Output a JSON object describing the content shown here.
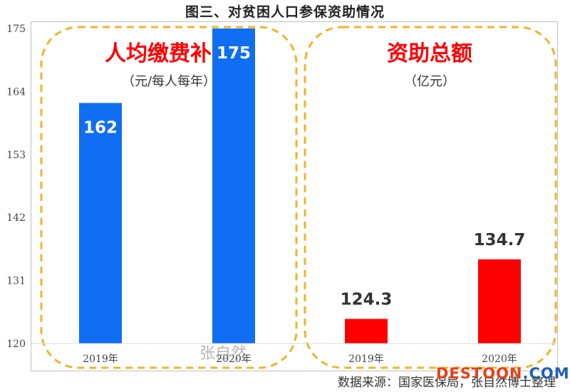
{
  "title": "图三、对贫困人口参保资助情况",
  "source": "数据来源：国家医保局，张自然博士整理",
  "watermark": "张自然",
  "site_logo": {
    "part1": "DESTOON",
    "part2": ".COM"
  },
  "colors": {
    "blue": "#0f6ef2",
    "red": "#ff0000",
    "dash": "#f0b429",
    "label_red": "#ff0000"
  },
  "chart_data": {
    "type": "bar",
    "ylim": [
      120,
      175
    ],
    "yticks": [
      120,
      131,
      142,
      153,
      164,
      175
    ],
    "grid": false,
    "groups": [
      {
        "label": "人均缴费补贴",
        "unit": "（元/每人每年）",
        "color": "#0f6ef2",
        "categories": [
          "2019年",
          "2020年"
        ],
        "values": [
          162,
          175
        ],
        "value_labels": [
          "162",
          "175"
        ]
      },
      {
        "label": "资助总额",
        "unit": "（亿元）",
        "color": "#ff0000",
        "categories": [
          "2019年",
          "2020年"
        ],
        "values": [
          124.3,
          134.7
        ],
        "value_labels": [
          "124.3",
          "134.7"
        ]
      }
    ]
  }
}
